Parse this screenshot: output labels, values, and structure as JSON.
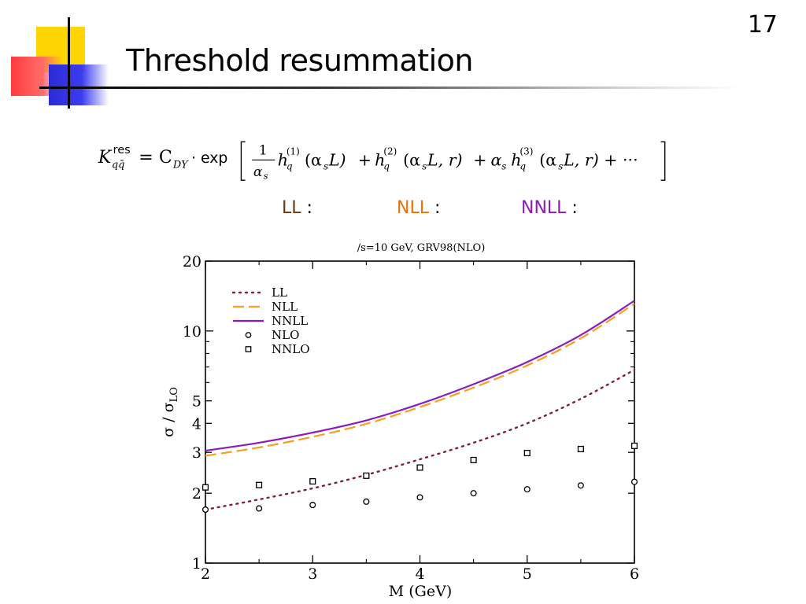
{
  "slide": {
    "number": "17",
    "title": "Threshold resummation"
  },
  "formula": {
    "lhs_symbol": "K",
    "lhs_super": "res",
    "lhs_sub": "qq̄",
    "eq": "= C",
    "cdy_sub": "DY",
    "exp": "· exp",
    "frac_num": "1",
    "frac_den": "α",
    "frac_den_sub": "s",
    "h": "h",
    "q": "q",
    "sup1": "(1)",
    "arg1": "(α",
    "arg1_sub": "s",
    "arg1_rest": "L)",
    "plus": "+",
    "sup2": "(2)",
    "arg2": "(α",
    "arg2_sub": "s",
    "arg2_rest": "L, r)",
    "alpha_s": "α",
    "alpha_s_sub": "s",
    "sup3": "(3)",
    "arg3": "(α",
    "arg3_sub": "s",
    "arg3_rest": "L, r) + ···"
  },
  "order_legend": [
    {
      "label": "LL",
      "colon": " :",
      "color": "#6b3a10"
    },
    {
      "label": "NLL",
      "colon": " :",
      "color": "#e8720c"
    },
    {
      "label": "NNLL",
      "colon": " :",
      "color": "#8a1bbf"
    }
  ],
  "chart_data": {
    "type": "line",
    "title": "/s=10 GeV, GRV98(NLO)",
    "xlabel": "M (GeV)",
    "ylabel": "σ / σ",
    "ylabel_sub": "LO",
    "xlim": [
      2,
      6
    ],
    "ylim": [
      1,
      20
    ],
    "yscale": "log",
    "x_ticks": [
      "2",
      "3",
      "4",
      "5",
      "6"
    ],
    "y_ticks": [
      "1",
      "2",
      "3",
      "4",
      "5",
      "10",
      "20"
    ],
    "legend_position": "top-left",
    "series": [
      {
        "name": "LL",
        "style": "dotted",
        "color": "#7a1f4a",
        "x": [
          2,
          2.5,
          3,
          3.5,
          4,
          4.5,
          5,
          5.5,
          6
        ],
        "y": [
          1.7,
          1.88,
          2.1,
          2.4,
          2.8,
          3.3,
          4.0,
          5.1,
          6.8
        ]
      },
      {
        "name": "NLL",
        "style": "dashed",
        "color": "#f5a020",
        "x": [
          2,
          2.5,
          3,
          3.5,
          4,
          4.5,
          5,
          5.5,
          6
        ],
        "y": [
          2.9,
          3.15,
          3.5,
          3.98,
          4.7,
          5.7,
          7.1,
          9.3,
          13.1
        ]
      },
      {
        "name": "NNLL",
        "style": "solid",
        "color": "#8a1bbf",
        "x": [
          2,
          2.5,
          3,
          3.5,
          4,
          4.5,
          5,
          5.5,
          6
        ],
        "y": [
          3.05,
          3.3,
          3.65,
          4.12,
          4.85,
          5.9,
          7.35,
          9.6,
          13.5
        ]
      },
      {
        "name": "NLO",
        "style": "circle",
        "color": "#000000",
        "x": [
          2,
          2.5,
          3,
          3.5,
          4,
          4.5,
          5,
          5.5,
          6
        ],
        "y": [
          1.7,
          1.72,
          1.78,
          1.84,
          1.92,
          2.0,
          2.08,
          2.16,
          2.24
        ]
      },
      {
        "name": "NNLO",
        "style": "square",
        "color": "#000000",
        "x": [
          2,
          2.5,
          3,
          3.5,
          4,
          4.5,
          5,
          5.5,
          6
        ],
        "y": [
          2.12,
          2.17,
          2.25,
          2.38,
          2.58,
          2.78,
          2.98,
          3.1,
          3.2
        ]
      }
    ]
  }
}
